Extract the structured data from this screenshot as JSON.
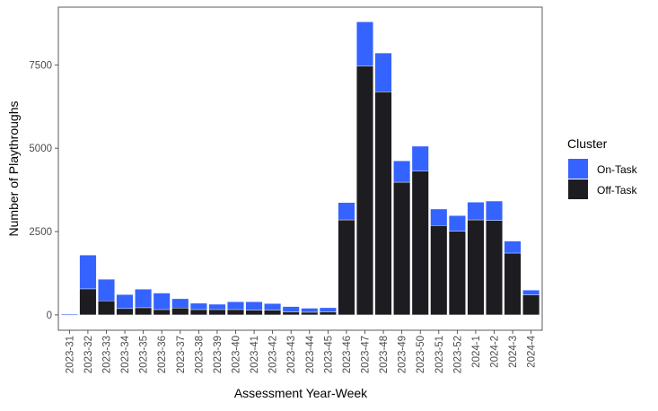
{
  "chart_data": {
    "type": "bar",
    "stacked": true,
    "title": "",
    "xlabel": "Assessment Year-Week",
    "ylabel": "Number of Playthroughs",
    "ylim": [
      -460,
      9230
    ],
    "yticks": [
      0,
      2500,
      5000,
      7500
    ],
    "grid": false,
    "legend": {
      "title": "Cluster",
      "placement": "right"
    },
    "categories": [
      "2023-31",
      "2023-32",
      "2023-33",
      "2023-34",
      "2023-35",
      "2023-36",
      "2023-37",
      "2023-38",
      "2023-39",
      "2023-40",
      "2023-41",
      "2023-42",
      "2023-43",
      "2023-44",
      "2023-45",
      "2023-46",
      "2023-47",
      "2023-48",
      "2023-49",
      "2023-50",
      "2023-51",
      "2023-52",
      "2024-1",
      "2024-2",
      "2024-3",
      "2024-4"
    ],
    "series": [
      {
        "name": "Off-Task",
        "color": "#1c1c21",
        "values": [
          5,
          780,
          420,
          190,
          215,
          160,
          205,
          160,
          160,
          160,
          145,
          145,
          90,
          80,
          90,
          2850,
          7460,
          6690,
          3980,
          4310,
          2680,
          2510,
          2850,
          2835,
          1855,
          600
        ]
      },
      {
        "name": "On-Task",
        "color": "#3563ff",
        "values": [
          25,
          1015,
          650,
          420,
          555,
          495,
          280,
          190,
          160,
          235,
          250,
          195,
          160,
          120,
          125,
          520,
          1330,
          1165,
          640,
          750,
          495,
          470,
          530,
          580,
          360,
          145
        ]
      }
    ]
  }
}
